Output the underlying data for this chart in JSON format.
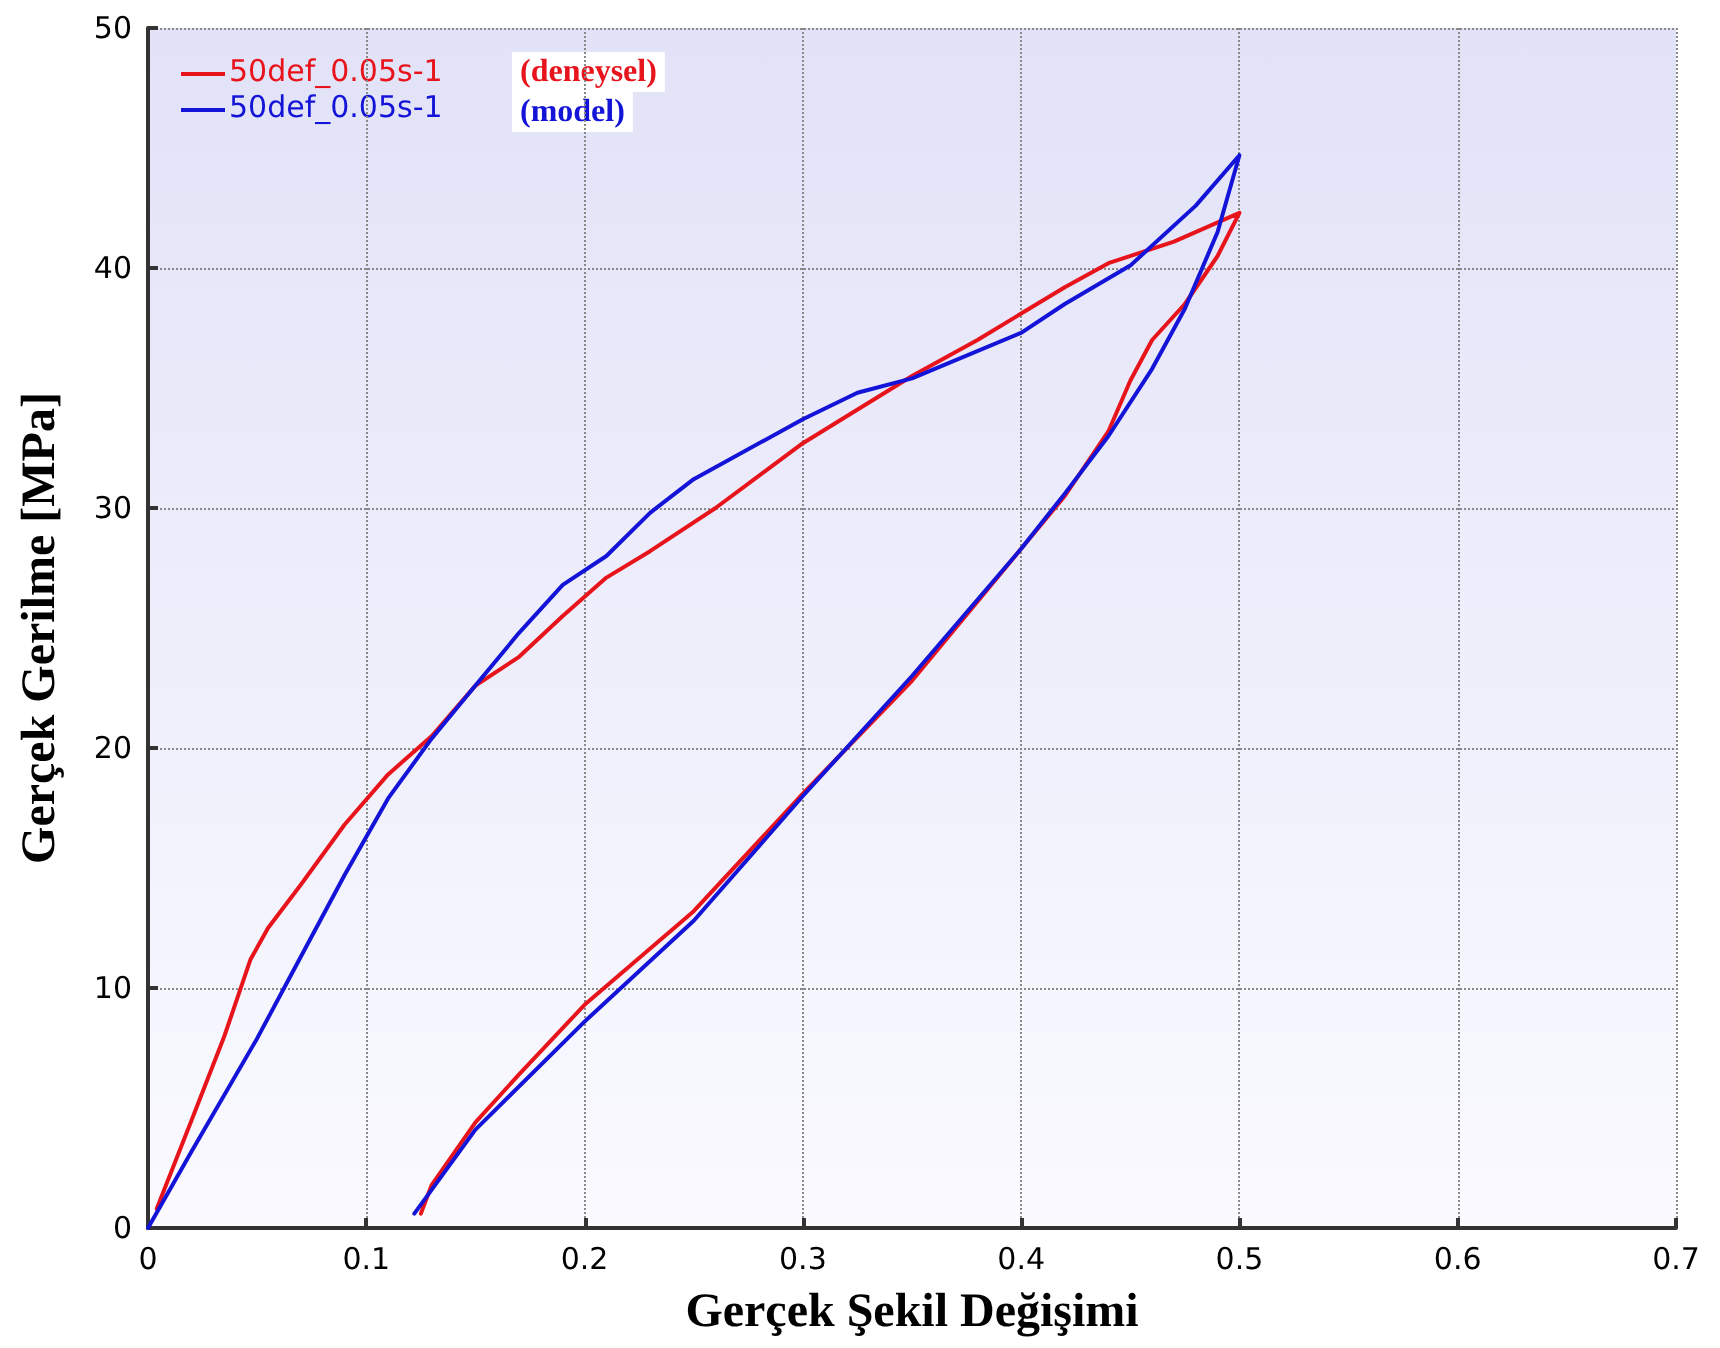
{
  "chart_data": {
    "type": "line",
    "xlabel": "Gerçek Şekil Değişimi",
    "ylabel": "Gerçek Gerilme [MPa]",
    "xlim": [
      0,
      0.7
    ],
    "xticks": [
      0,
      0.1,
      0.2,
      0.3,
      0.4,
      0.5,
      0.6,
      0.7
    ],
    "ylim": [
      0,
      50
    ],
    "yticks": [
      0,
      10,
      20,
      30,
      40,
      50
    ],
    "grid": true,
    "legend": "top left",
    "marker": "none",
    "line_style": "solid",
    "annotations": [
      "(deneysel)",
      "(model)"
    ],
    "series": [
      {
        "name": "50def_0.05s-1",
        "color": "#e8141c",
        "x": [
          0.004,
          0.02,
          0.035,
          0.047,
          0.055,
          0.07,
          0.09,
          0.11,
          0.13,
          0.15,
          0.17,
          0.19,
          0.21,
          0.23,
          0.26,
          0.3,
          0.35,
          0.38,
          0.42,
          0.44,
          0.47,
          0.5,
          0.49,
          0.475,
          0.46,
          0.45,
          0.44,
          0.42,
          0.4,
          0.35,
          0.3,
          0.25,
          0.2,
          0.17,
          0.15,
          0.13,
          0.125
        ],
        "values": [
          0.8,
          4.5,
          8,
          11.2,
          12.5,
          14.3,
          16.8,
          18.9,
          20.5,
          22.6,
          23.8,
          25.5,
          27.1,
          28.2,
          30,
          32.7,
          35.5,
          37,
          39.2,
          40.2,
          41.1,
          42.3,
          40.5,
          38.5,
          37,
          35.3,
          33.2,
          30.5,
          28.3,
          22.8,
          18.1,
          13.2,
          9.3,
          6.4,
          4.4,
          1.8,
          0.6
        ]
      },
      {
        "name": "50def_0.05s-1",
        "color": "#1414d8",
        "x": [
          0,
          0.02,
          0.05,
          0.07,
          0.09,
          0.11,
          0.13,
          0.15,
          0.17,
          0.19,
          0.21,
          0.23,
          0.25,
          0.3,
          0.325,
          0.35,
          0.4,
          0.42,
          0.45,
          0.48,
          0.5,
          0.49,
          0.475,
          0.46,
          0.44,
          0.42,
          0.4,
          0.35,
          0.3,
          0.25,
          0.2,
          0.15,
          0.122
        ],
        "values": [
          0,
          3.2,
          7.9,
          11.3,
          14.7,
          17.9,
          20.4,
          22.6,
          24.8,
          26.8,
          28,
          29.8,
          31.2,
          33.7,
          34.8,
          35.4,
          37.3,
          38.5,
          40.1,
          42.6,
          44.7,
          41.5,
          38.3,
          35.8,
          33,
          30.6,
          28.3,
          23,
          18,
          12.8,
          8.6,
          4.1,
          0.6
        ]
      }
    ]
  }
}
